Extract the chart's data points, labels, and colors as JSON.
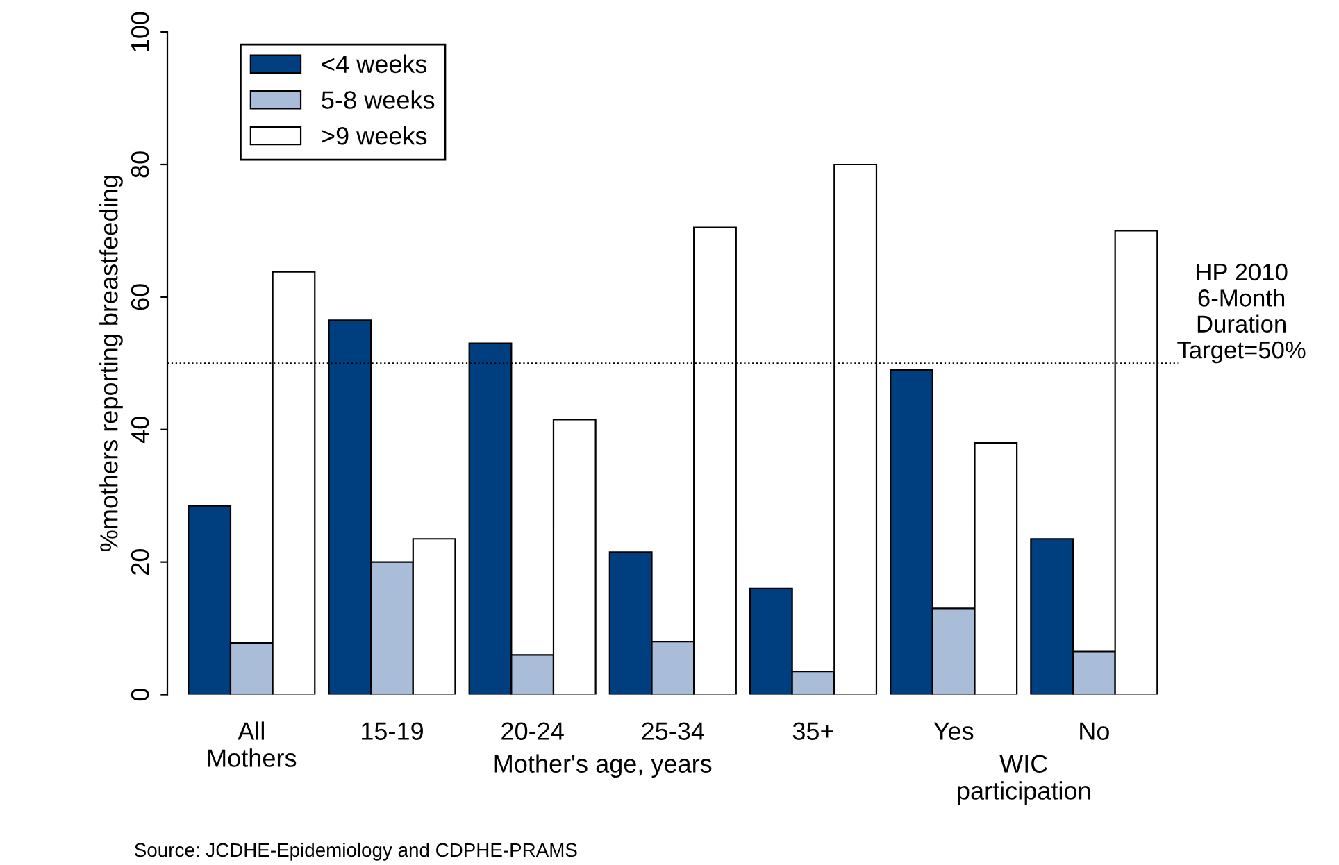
{
  "chart_data": {
    "type": "bar",
    "ylabel": "%mothers reporting breastfeeding",
    "categories": [
      "All\nMothers",
      "15-19",
      "20-24",
      "25-34",
      "35+",
      "Yes",
      "No"
    ],
    "series": [
      {
        "name": "<4 weeks",
        "color": "#003f7f",
        "values": [
          28.5,
          56.5,
          53,
          21.5,
          16,
          49,
          23.5
        ]
      },
      {
        "name": "5-8 weeks",
        "color": "#a9bcd8",
        "values": [
          7.8,
          20,
          6,
          8,
          3.5,
          13,
          6.5
        ]
      },
      {
        "name": ">9 weeks",
        "color": "#ffffff",
        "values": [
          63.8,
          23.5,
          41.5,
          70.5,
          80,
          38,
          70
        ]
      }
    ],
    "ylim": [
      0,
      100
    ],
    "yticks": [
      0,
      20,
      40,
      60,
      80,
      100
    ],
    "ref_lines": [
      {
        "axis": "y",
        "value": 50,
        "label": "HP 2010\n6-Month\nDuration\nTarget=50%",
        "color": "#000000",
        "line_style": "dotted"
      }
    ],
    "annotations": [
      "Mother's age, years",
      "WIC participation",
      "Source: JCDHE-Epidemiology and CDPHE-PRAMS"
    ],
    "legend": "top left",
    "grid": false
  }
}
